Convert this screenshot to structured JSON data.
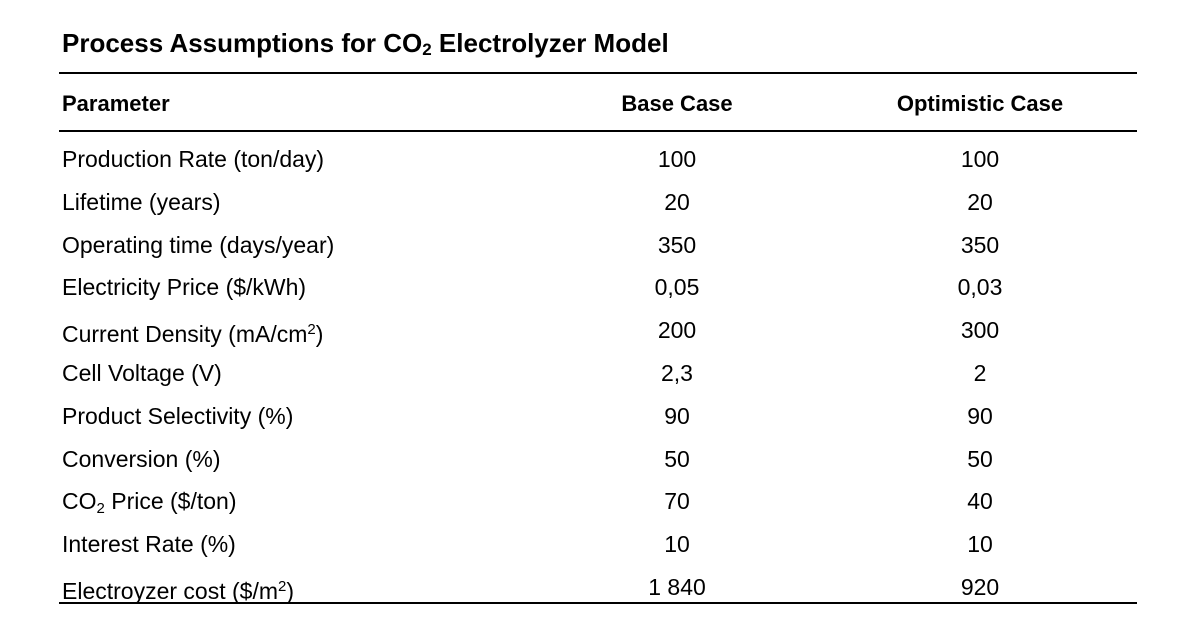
{
  "table": {
    "title": {
      "before": "Process Assumptions for CO",
      "sub": "2",
      "after": " Electrolyzer Model"
    },
    "headers": {
      "parameter": "Parameter",
      "base": "Base Case",
      "optimistic": "Optimistic Case"
    },
    "rows": [
      {
        "label": "Production Rate (ton/day)",
        "base": "100",
        "optimistic": "100"
      },
      {
        "label": "Lifetime (years)",
        "base": "20",
        "optimistic": "20"
      },
      {
        "label": "Operating time (days/year)",
        "base": "350",
        "optimistic": "350"
      },
      {
        "label": "Electricity Price ($/kWh)",
        "base": "0,05",
        "optimistic": "0,03"
      },
      {
        "label_before": "Current Density (mA/cm",
        "label_sup": "2",
        "label_after": ")",
        "base": "200",
        "optimistic": "300"
      },
      {
        "label": "Cell Voltage (V)",
        "base": "2,3",
        "optimistic": "2"
      },
      {
        "label": "Product Selectivity (%)",
        "base": "90",
        "optimistic": "90"
      },
      {
        "label": "Conversion (%)",
        "base": "50",
        "optimistic": "50"
      },
      {
        "label_before": "CO",
        "label_sub": "2",
        "label_after": " Price ($/ton)",
        "base": "70",
        "optimistic": "40"
      },
      {
        "label": "Interest Rate (%)",
        "base": "10",
        "optimistic": "10"
      },
      {
        "label_before": "Electroyzer cost ($/m",
        "label_sup": "2",
        "label_after": ")",
        "base": "1 840",
        "optimistic": "920"
      }
    ]
  }
}
